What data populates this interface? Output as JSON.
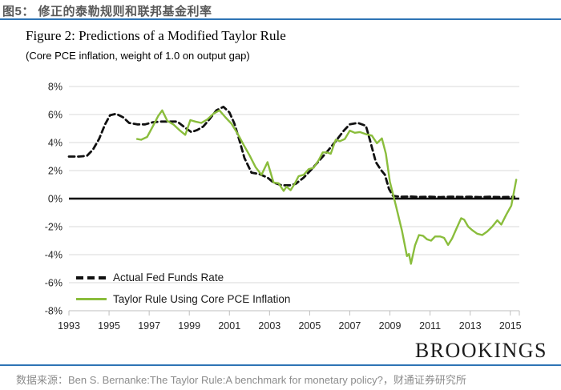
{
  "page": {
    "header_title": "图5： 修正的泰勒规则和联邦基金利率",
    "watermark": "BROOKINGS",
    "footer_source": "数据来源：Ben S. Bernanke:The Taylor Rule:A benchmark for monetary policy?，财通证券研究所",
    "accent_blue": "#2E74B5"
  },
  "chart_data": {
    "type": "line",
    "title": "Figure 2: Predictions of a Modified Taylor Rule",
    "subtitle": "(Core PCE inflation, weight of 1.0 on output gap)",
    "xlabel": "",
    "ylabel": "",
    "xlim": [
      1993,
      2015.45
    ],
    "ylim": [
      -8,
      8
    ],
    "grid": true,
    "zero_line_bold": true,
    "legend_position": "inside-bottom-left",
    "x_ticks": [
      1993,
      1995,
      1997,
      1999,
      2001,
      2003,
      2005,
      2007,
      2009,
      2011,
      2013,
      2015
    ],
    "y_ticks": [
      8,
      6,
      4,
      2,
      0,
      -2,
      -4,
      -6,
      -8
    ],
    "y_tick_suffix": "%",
    "series": [
      {
        "name": "Actual Fed Funds Rate",
        "style": "dashed",
        "color": "#111111",
        "points": [
          [
            1993.0,
            3.0
          ],
          [
            1993.5,
            3.0
          ],
          [
            1993.9,
            3.05
          ],
          [
            1994.2,
            3.5
          ],
          [
            1994.5,
            4.25
          ],
          [
            1994.8,
            5.3
          ],
          [
            1995.05,
            5.95
          ],
          [
            1995.35,
            6.05
          ],
          [
            1995.7,
            5.8
          ],
          [
            1996.0,
            5.4
          ],
          [
            1996.4,
            5.3
          ],
          [
            1996.8,
            5.3
          ],
          [
            1997.2,
            5.45
          ],
          [
            1997.6,
            5.5
          ],
          [
            1998.0,
            5.5
          ],
          [
            1998.4,
            5.5
          ],
          [
            1998.8,
            5.05
          ],
          [
            1999.1,
            4.75
          ],
          [
            1999.4,
            4.9
          ],
          [
            1999.7,
            5.15
          ],
          [
            2000.0,
            5.65
          ],
          [
            2000.35,
            6.3
          ],
          [
            2000.7,
            6.55
          ],
          [
            2001.0,
            6.15
          ],
          [
            2001.25,
            5.35
          ],
          [
            2001.5,
            4.15
          ],
          [
            2001.75,
            2.9
          ],
          [
            2002.1,
            1.85
          ],
          [
            2002.5,
            1.75
          ],
          [
            2002.9,
            1.5
          ],
          [
            2003.2,
            1.15
          ],
          [
            2003.6,
            0.95
          ],
          [
            2004.0,
            0.95
          ],
          [
            2004.3,
            1.05
          ],
          [
            2004.7,
            1.5
          ],
          [
            2005.1,
            2.1
          ],
          [
            2005.5,
            2.75
          ],
          [
            2005.9,
            3.4
          ],
          [
            2006.3,
            4.1
          ],
          [
            2006.7,
            4.85
          ],
          [
            2007.0,
            5.3
          ],
          [
            2007.4,
            5.4
          ],
          [
            2007.8,
            5.2
          ],
          [
            2008.0,
            4.2
          ],
          [
            2008.3,
            2.6
          ],
          [
            2008.55,
            2.05
          ],
          [
            2008.75,
            1.7
          ],
          [
            2008.95,
            0.7
          ],
          [
            2009.15,
            0.2
          ],
          [
            2009.5,
            0.13
          ],
          [
            2010.0,
            0.15
          ],
          [
            2010.5,
            0.12
          ],
          [
            2011.0,
            0.14
          ],
          [
            2011.5,
            0.11
          ],
          [
            2012.0,
            0.14
          ],
          [
            2012.5,
            0.12
          ],
          [
            2013.0,
            0.13
          ],
          [
            2013.5,
            0.11
          ],
          [
            2014.0,
            0.13
          ],
          [
            2014.5,
            0.11
          ],
          [
            2015.0,
            0.12
          ],
          [
            2015.2,
            0.13
          ]
        ]
      },
      {
        "name": "Taylor Rule Using Core PCE Inflation",
        "style": "solid",
        "color": "#8ABD3C",
        "points": [
          [
            1996.4,
            4.25
          ],
          [
            1996.6,
            4.2
          ],
          [
            1996.9,
            4.4
          ],
          [
            1997.2,
            5.2
          ],
          [
            1997.45,
            5.9
          ],
          [
            1997.65,
            6.3
          ],
          [
            1997.9,
            5.55
          ],
          [
            1998.2,
            5.3
          ],
          [
            1998.5,
            4.9
          ],
          [
            1998.8,
            4.55
          ],
          [
            1999.05,
            5.6
          ],
          [
            1999.3,
            5.5
          ],
          [
            1999.6,
            5.4
          ],
          [
            1999.9,
            5.65
          ],
          [
            2000.2,
            6.05
          ],
          [
            2000.5,
            6.3
          ],
          [
            2000.8,
            5.8
          ],
          [
            2001.1,
            5.35
          ],
          [
            2001.4,
            4.65
          ],
          [
            2001.7,
            3.85
          ],
          [
            2002.0,
            3.1
          ],
          [
            2002.3,
            2.25
          ],
          [
            2002.6,
            1.7
          ],
          [
            2002.9,
            2.6
          ],
          [
            2003.2,
            1.15
          ],
          [
            2003.45,
            1.1
          ],
          [
            2003.7,
            0.55
          ],
          [
            2003.85,
            0.85
          ],
          [
            2004.05,
            0.6
          ],
          [
            2004.25,
            1.05
          ],
          [
            2004.45,
            1.6
          ],
          [
            2004.7,
            1.7
          ],
          [
            2004.95,
            2.1
          ],
          [
            2005.2,
            2.2
          ],
          [
            2005.45,
            2.75
          ],
          [
            2005.65,
            3.3
          ],
          [
            2005.85,
            3.3
          ],
          [
            2006.05,
            3.2
          ],
          [
            2006.3,
            4.2
          ],
          [
            2006.5,
            4.1
          ],
          [
            2006.75,
            4.25
          ],
          [
            2007.0,
            4.85
          ],
          [
            2007.25,
            4.7
          ],
          [
            2007.5,
            4.75
          ],
          [
            2007.8,
            4.6
          ],
          [
            2008.1,
            4.5
          ],
          [
            2008.35,
            3.95
          ],
          [
            2008.6,
            4.3
          ],
          [
            2008.8,
            3.2
          ],
          [
            2009.0,
            1.2
          ],
          [
            2009.3,
            -0.5
          ],
          [
            2009.6,
            -2.3
          ],
          [
            2009.85,
            -4.1
          ],
          [
            2009.95,
            -3.95
          ],
          [
            2010.05,
            -4.65
          ],
          [
            2010.25,
            -3.35
          ],
          [
            2010.45,
            -2.6
          ],
          [
            2010.65,
            -2.65
          ],
          [
            2010.85,
            -2.9
          ],
          [
            2011.05,
            -3.0
          ],
          [
            2011.25,
            -2.7
          ],
          [
            2011.5,
            -2.7
          ],
          [
            2011.7,
            -2.8
          ],
          [
            2011.9,
            -3.3
          ],
          [
            2012.1,
            -2.85
          ],
          [
            2012.3,
            -2.2
          ],
          [
            2012.55,
            -1.4
          ],
          [
            2012.7,
            -1.5
          ],
          [
            2012.9,
            -2.0
          ],
          [
            2013.1,
            -2.25
          ],
          [
            2013.35,
            -2.5
          ],
          [
            2013.6,
            -2.6
          ],
          [
            2013.85,
            -2.35
          ],
          [
            2014.1,
            -2.0
          ],
          [
            2014.35,
            -1.55
          ],
          [
            2014.55,
            -1.85
          ],
          [
            2014.8,
            -1.15
          ],
          [
            2015.05,
            -0.5
          ],
          [
            2015.3,
            1.35
          ]
        ]
      }
    ]
  }
}
